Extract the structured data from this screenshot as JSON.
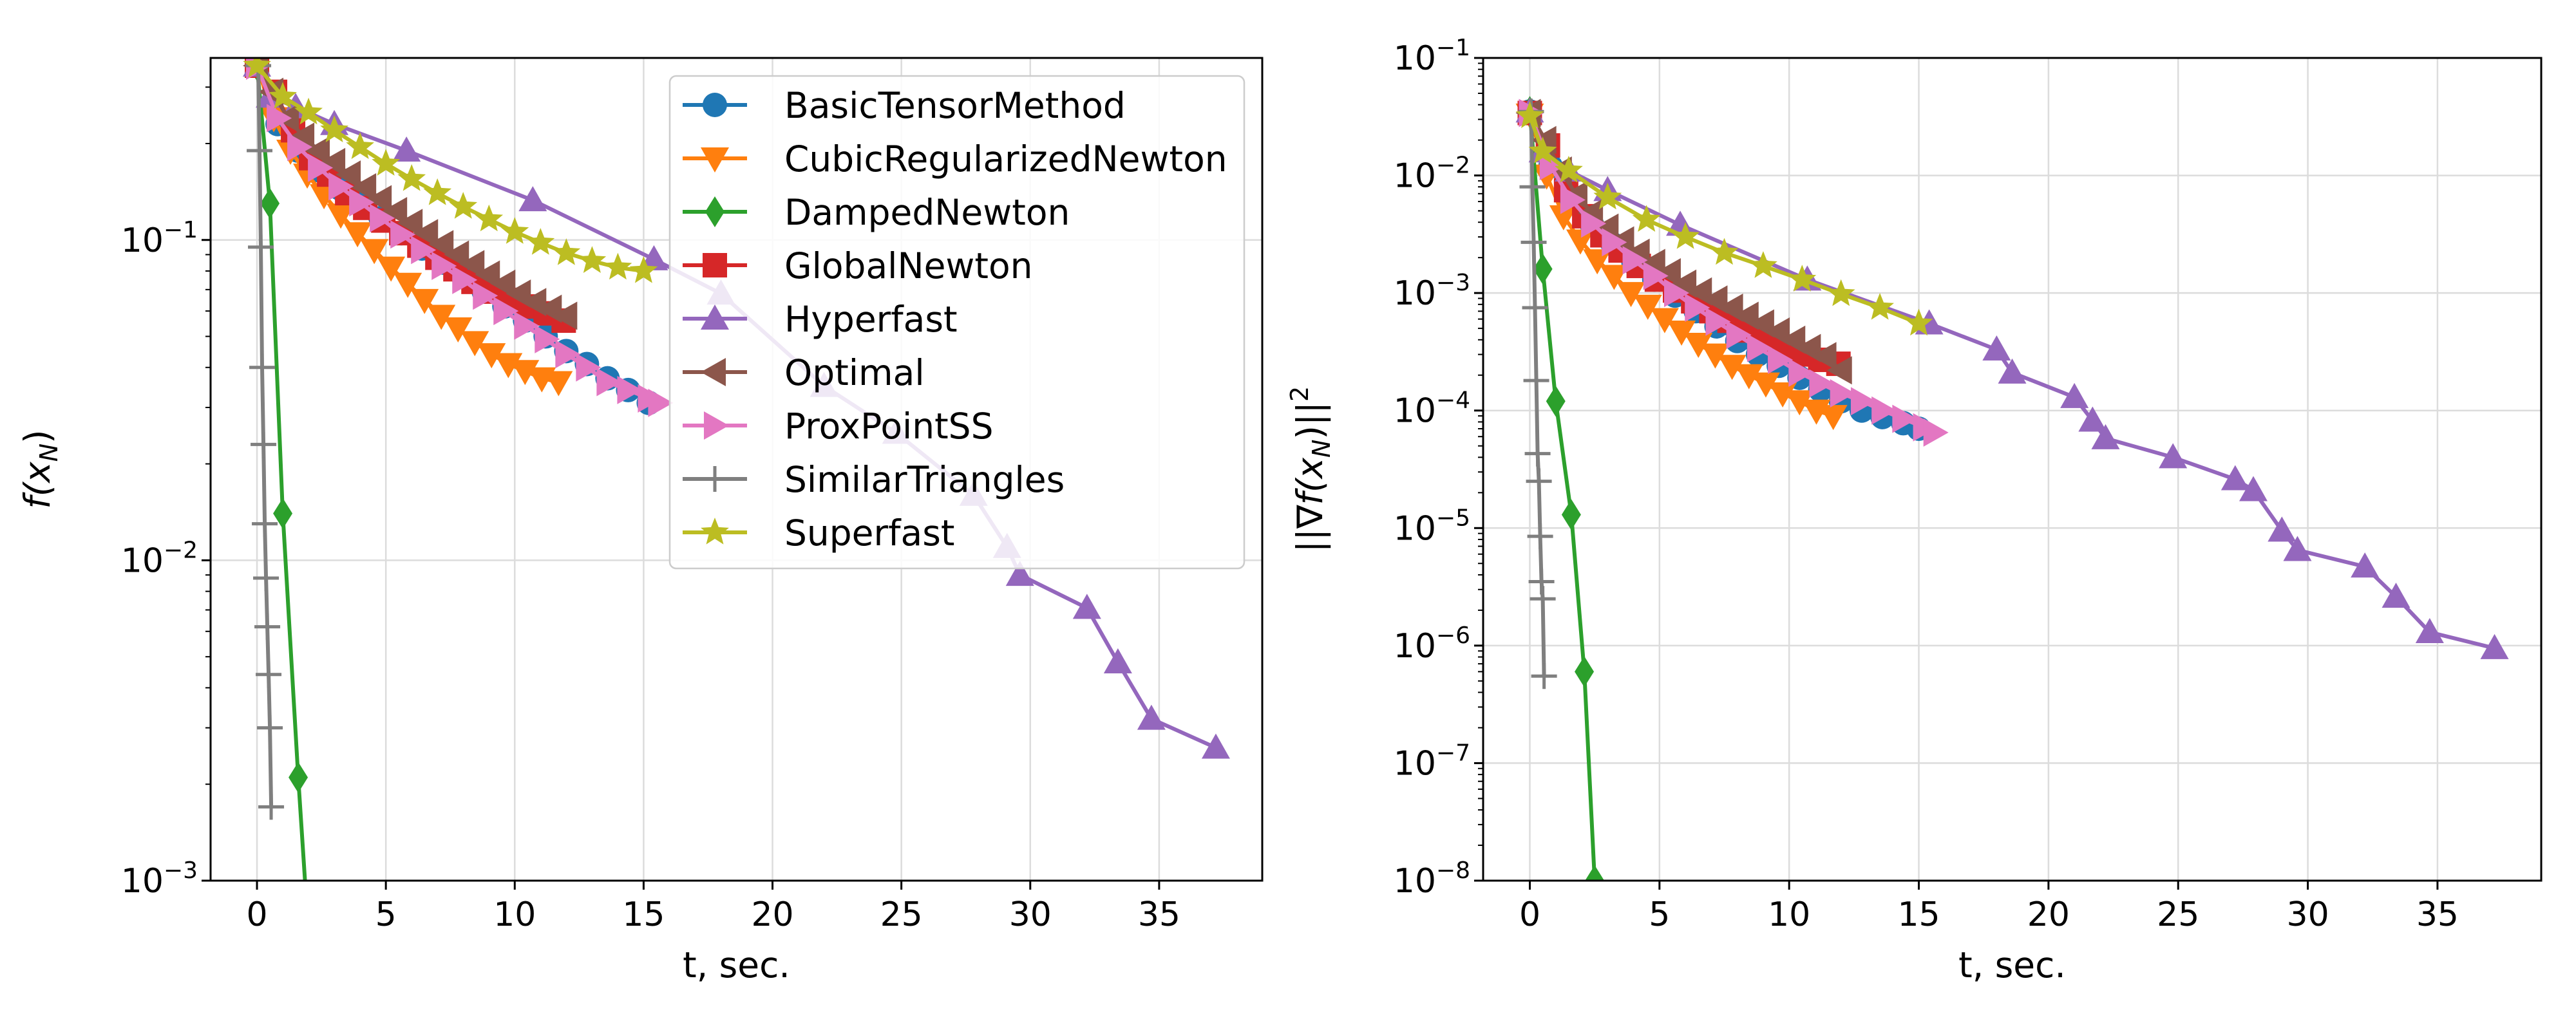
{
  "chart_data": [
    {
      "type": "line",
      "title": "",
      "xlabel": "t, sec.",
      "ylabel_parts": [
        "f(x",
        "N",
        ")"
      ],
      "yscale": "log",
      "xlim": [
        -1.8,
        39
      ],
      "ylim": [
        0.001,
        0.37
      ],
      "xticks": [
        0,
        5,
        10,
        15,
        20,
        25,
        30,
        35
      ],
      "yticks": [
        {
          "base": "10",
          "exp": "−1",
          "value": 0.1
        },
        {
          "base": "10",
          "exp": "−2",
          "value": 0.01
        },
        {
          "base": "10",
          "exp": "−3",
          "value": 0.001
        }
      ],
      "grid": true,
      "legend": "top-right",
      "series": [
        {
          "name": "BasicTensorMethod",
          "color": "#1f77b4",
          "marker": "circle",
          "x": [
            0,
            0.8,
            1.6,
            2.4,
            3.2,
            4.0,
            4.8,
            5.6,
            6.4,
            7.2,
            8.0,
            8.8,
            9.6,
            10.4,
            11.2,
            12.0,
            12.8,
            13.6,
            14.4,
            15.2
          ],
          "y": [
            0.35,
            0.23,
            0.19,
            0.165,
            0.145,
            0.13,
            0.117,
            0.105,
            0.094,
            0.085,
            0.077,
            0.069,
            0.062,
            0.056,
            0.05,
            0.045,
            0.041,
            0.037,
            0.034,
            0.031
          ]
        },
        {
          "name": "CubicRegularizedNewton",
          "color": "#ff7f0e",
          "marker": "triangle-down",
          "x": [
            0,
            0.65,
            1.3,
            1.95,
            2.6,
            3.25,
            3.9,
            4.55,
            5.2,
            5.85,
            6.5,
            7.15,
            7.8,
            8.45,
            9.1,
            9.75,
            10.4,
            11.05,
            11.7
          ],
          "y": [
            0.35,
            0.24,
            0.19,
            0.16,
            0.138,
            0.12,
            0.105,
            0.093,
            0.082,
            0.073,
            0.065,
            0.058,
            0.053,
            0.048,
            0.044,
            0.041,
            0.039,
            0.037,
            0.036
          ]
        },
        {
          "name": "DampedNewton",
          "color": "#2ca02c",
          "marker": "diamond",
          "x": [
            0,
            0.5,
            1.0,
            1.6,
            1.9
          ],
          "y": [
            0.35,
            0.13,
            0.014,
            0.0021,
            0.0009
          ]
        },
        {
          "name": "GlobalNewton",
          "color": "#d62728",
          "marker": "square",
          "x": [
            0,
            0.7,
            1.4,
            2.1,
            2.8,
            3.5,
            4.2,
            4.9,
            5.6,
            6.3,
            7.0,
            7.7,
            8.4,
            9.1,
            9.8,
            10.5,
            11.2,
            11.9
          ],
          "y": [
            0.35,
            0.29,
            0.22,
            0.18,
            0.16,
            0.14,
            0.126,
            0.115,
            0.105,
            0.096,
            0.088,
            0.081,
            0.074,
            0.069,
            0.065,
            0.062,
            0.059,
            0.056
          ]
        },
        {
          "name": "Hyperfast",
          "color": "#9467bd",
          "marker": "triangle-up",
          "x": [
            0,
            0.5,
            1.5,
            3.0,
            5.8,
            10.7,
            15.4,
            18,
            22,
            24.8,
            27.8,
            29.1,
            29.6,
            32.2,
            33.4,
            34.7,
            37.2
          ],
          "y": [
            0.35,
            0.28,
            0.26,
            0.23,
            0.19,
            0.133,
            0.087,
            0.068,
            0.035,
            0.025,
            0.016,
            0.011,
            0.009,
            0.0071,
            0.0048,
            0.0032,
            0.0026
          ]
        },
        {
          "name": "Optimal",
          "color": "#8c564b",
          "marker": "triangle-left",
          "x": [
            0,
            0.6,
            1.2,
            1.8,
            2.4,
            3.0,
            3.6,
            4.2,
            4.8,
            5.4,
            6.0,
            6.6,
            7.2,
            7.8,
            8.4,
            9.0,
            9.6,
            10.2,
            10.8,
            11.4,
            12.0
          ],
          "y": [
            0.35,
            0.29,
            0.24,
            0.21,
            0.19,
            0.175,
            0.16,
            0.146,
            0.134,
            0.123,
            0.113,
            0.105,
            0.097,
            0.09,
            0.084,
            0.078,
            0.073,
            0.068,
            0.064,
            0.061,
            0.058
          ]
        },
        {
          "name": "ProxPointSS",
          "color": "#e377c2",
          "marker": "triangle-right",
          "x": [
            0,
            0.8,
            1.6,
            2.4,
            3.2,
            4.0,
            4.8,
            5.6,
            6.4,
            7.2,
            8.0,
            8.8,
            9.6,
            10.4,
            11.2,
            12.0,
            12.8,
            13.6,
            14.4,
            15.2,
            15.6
          ],
          "y": [
            0.35,
            0.24,
            0.195,
            0.168,
            0.147,
            0.131,
            0.117,
            0.104,
            0.093,
            0.083,
            0.075,
            0.067,
            0.06,
            0.054,
            0.049,
            0.044,
            0.04,
            0.036,
            0.034,
            0.032,
            0.031
          ]
        },
        {
          "name": "SimilarTriangles",
          "color": "#7f7f7f",
          "marker": "plus",
          "x": [
            0.05,
            0.1,
            0.15,
            0.2,
            0.25,
            0.3,
            0.35,
            0.4,
            0.45,
            0.5,
            0.55
          ],
          "y": [
            0.35,
            0.19,
            0.095,
            0.04,
            0.023,
            0.013,
            0.0088,
            0.0062,
            0.0044,
            0.003,
            0.0017
          ]
        },
        {
          "name": "Superfast",
          "color": "#bcbd22",
          "marker": "star",
          "x": [
            0,
            1.0,
            2.0,
            3.0,
            4.0,
            5.0,
            6.0,
            7.0,
            8.0,
            9.0,
            10.0,
            11.0,
            12.0,
            13.0,
            14.0,
            15.0
          ],
          "y": [
            0.35,
            0.28,
            0.25,
            0.22,
            0.195,
            0.173,
            0.155,
            0.14,
            0.127,
            0.116,
            0.106,
            0.098,
            0.091,
            0.086,
            0.082,
            0.08
          ]
        }
      ]
    },
    {
      "type": "line",
      "title": "",
      "xlabel": "t, sec.",
      "ylabel_parts": [
        "||∇f(x",
        "N",
        ")||",
        "2"
      ],
      "yscale": "log",
      "xlim": [
        -1.8,
        39
      ],
      "ylim": [
        1e-08,
        0.1
      ],
      "xticks": [
        0,
        5,
        10,
        15,
        20,
        25,
        30,
        35
      ],
      "yticks": [
        {
          "base": "10",
          "exp": "−1",
          "value": 0.1
        },
        {
          "base": "10",
          "exp": "−2",
          "value": 0.01
        },
        {
          "base": "10",
          "exp": "−3",
          "value": 0.001
        },
        {
          "base": "10",
          "exp": "−4",
          "value": 0.0001
        },
        {
          "base": "10",
          "exp": "−5",
          "value": 1e-05
        },
        {
          "base": "10",
          "exp": "−6",
          "value": 1e-06
        },
        {
          "base": "10",
          "exp": "−7",
          "value": 1e-07
        },
        {
          "base": "10",
          "exp": "−8",
          "value": 1e-08
        }
      ],
      "grid": true,
      "legend": "none",
      "series": [
        {
          "name": "BasicTensorMethod",
          "color": "#1f77b4",
          "marker": "circle",
          "x": [
            0,
            0.8,
            1.6,
            2.4,
            3.2,
            4.0,
            4.8,
            5.6,
            6.4,
            7.2,
            8.0,
            8.8,
            9.6,
            10.4,
            11.2,
            12.0,
            12.8,
            13.6,
            14.4,
            15.0
          ],
          "y": [
            0.035,
            0.012,
            0.006,
            0.0038,
            0.0026,
            0.0018,
            0.0013,
            0.00095,
            0.0007,
            0.00052,
            0.00039,
            0.0003,
            0.00024,
            0.00019,
            0.00015,
            0.00012,
            0.0001,
            8.8e-05,
            7.8e-05,
            7e-05
          ]
        },
        {
          "name": "CubicRegularizedNewton",
          "color": "#ff7f0e",
          "marker": "triangle-down",
          "x": [
            0,
            0.65,
            1.3,
            1.95,
            2.6,
            3.25,
            3.9,
            4.55,
            5.2,
            5.85,
            6.5,
            7.15,
            7.8,
            8.45,
            9.1,
            9.75,
            10.4,
            11.05,
            11.7
          ],
          "y": [
            0.033,
            0.01,
            0.0045,
            0.0028,
            0.0019,
            0.0014,
            0.001,
            0.00078,
            0.0006,
            0.00047,
            0.00037,
            0.0003,
            0.00024,
            0.0002,
            0.00017,
            0.00014,
            0.00012,
            0.0001,
            9e-05
          ]
        },
        {
          "name": "DampedNewton",
          "color": "#2ca02c",
          "marker": "diamond",
          "x": [
            0,
            0.5,
            1.0,
            1.6,
            2.1,
            2.5
          ],
          "y": [
            0.035,
            0.0016,
            0.00012,
            1.3e-05,
            6e-07,
            1e-08
          ]
        },
        {
          "name": "GlobalNewton",
          "color": "#d62728",
          "marker": "square",
          "x": [
            0,
            0.7,
            1.4,
            2.1,
            2.8,
            3.5,
            4.2,
            4.9,
            5.6,
            6.3,
            7.0,
            7.7,
            8.4,
            9.1,
            9.8,
            10.5,
            11.2,
            11.9
          ],
          "y": [
            0.034,
            0.018,
            0.0075,
            0.0045,
            0.0031,
            0.0023,
            0.0017,
            0.0013,
            0.00105,
            0.00085,
            0.0007,
            0.00058,
            0.00048,
            0.0004,
            0.00034,
            0.0003,
            0.00027,
            0.00025
          ]
        },
        {
          "name": "Hyperfast",
          "color": "#9467bd",
          "marker": "triangle-up",
          "x": [
            0,
            0.5,
            1.5,
            3.0,
            5.8,
            10.7,
            15.4,
            18,
            18.6,
            21,
            21.7,
            22.2,
            24.8,
            27.2,
            27.9,
            29.0,
            29.6,
            32.2,
            33.4,
            34.7,
            37.2
          ],
          "y": [
            0.035,
            0.016,
            0.011,
            0.0075,
            0.0038,
            0.0013,
            0.00055,
            0.00033,
            0.00021,
            0.00013,
            8.2e-05,
            5.8e-05,
            4e-05,
            2.6e-05,
            2.1e-05,
            9.5e-06,
            6.5e-06,
            4.7e-06,
            2.6e-06,
            1.3e-06,
            9.5e-07
          ]
        },
        {
          "name": "Optimal",
          "color": "#8c564b",
          "marker": "triangle-left",
          "x": [
            0,
            0.6,
            1.2,
            1.8,
            2.4,
            3.0,
            3.6,
            4.2,
            4.8,
            5.4,
            6.0,
            6.6,
            7.2,
            7.8,
            8.4,
            9.0,
            9.6,
            10.2,
            10.8,
            11.4,
            12.0
          ],
          "y": [
            0.034,
            0.02,
            0.011,
            0.0068,
            0.0048,
            0.0036,
            0.0028,
            0.0022,
            0.0018,
            0.0015,
            0.0012,
            0.00103,
            0.00088,
            0.00075,
            0.00064,
            0.00055,
            0.00047,
            0.0004,
            0.00034,
            0.00029,
            0.00022
          ]
        },
        {
          "name": "ProxPointSS",
          "color": "#e377c2",
          "marker": "triangle-right",
          "x": [
            0,
            0.8,
            1.6,
            2.4,
            3.2,
            4.0,
            4.8,
            5.6,
            6.4,
            7.2,
            8.0,
            8.8,
            9.6,
            10.4,
            11.2,
            12.0,
            12.8,
            13.6,
            14.4,
            15.2,
            15.6
          ],
          "y": [
            0.034,
            0.012,
            0.0062,
            0.0039,
            0.0027,
            0.0019,
            0.0014,
            0.001,
            0.00075,
            0.00057,
            0.00044,
            0.00034,
            0.00027,
            0.00021,
            0.00017,
            0.00014,
            0.00012,
            0.0001,
            8.5e-05,
            7.2e-05,
            6.5e-05
          ]
        },
        {
          "name": "SimilarTriangles",
          "color": "#7f7f7f",
          "marker": "plus",
          "x": [
            0.05,
            0.1,
            0.15,
            0.2,
            0.25,
            0.3,
            0.35,
            0.4,
            0.45,
            0.5,
            0.55
          ],
          "y": [
            0.035,
            0.008,
            0.0027,
            0.00075,
            0.00018,
            4.3e-05,
            2.5e-05,
            8.5e-06,
            3.5e-06,
            2.5e-06,
            5.5e-07
          ]
        },
        {
          "name": "Superfast",
          "color": "#bcbd22",
          "marker": "star",
          "x": [
            0,
            0.5,
            1.5,
            3.0,
            4.5,
            6.0,
            7.5,
            9.0,
            10.5,
            12.0,
            13.5,
            15.0
          ],
          "y": [
            0.032,
            0.016,
            0.011,
            0.0065,
            0.0042,
            0.003,
            0.0022,
            0.0017,
            0.0013,
            0.00098,
            0.00075,
            0.00055
          ]
        }
      ]
    }
  ]
}
